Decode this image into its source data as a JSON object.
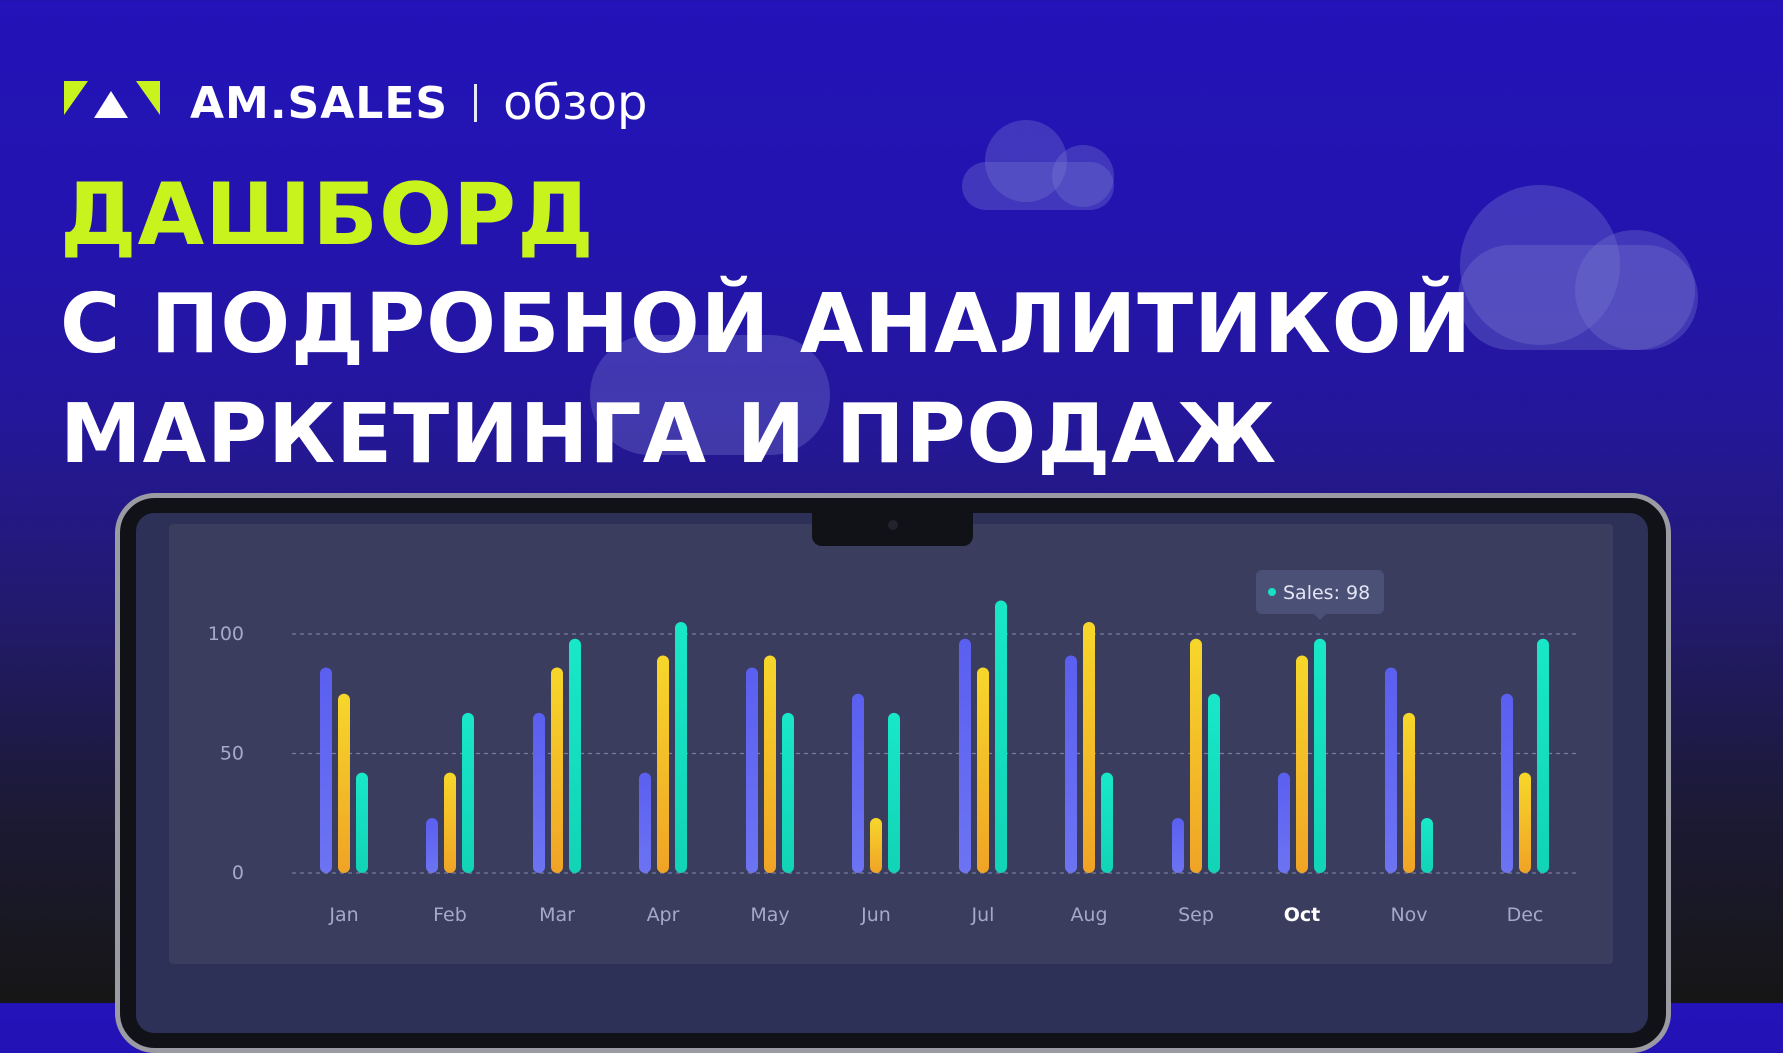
{
  "brand": {
    "name": "AM.SALES",
    "subtitle": "обзор"
  },
  "headline": {
    "line1": "ДАШБОРД",
    "line2": "С ПОДРОБНОЙ АНАЛИТИКОЙ",
    "line3": "МАРКЕТИНГА И ПРОДАЖ"
  },
  "colors": {
    "accent": "#c8f31d",
    "series_colors": [
      "#5b62ee",
      "#f2c21f",
      "#16e2c3"
    ],
    "background": "#2313b8"
  },
  "chart_data": {
    "type": "bar",
    "categories": [
      "Jan",
      "Feb",
      "Mar",
      "Apr",
      "May",
      "Jun",
      "Jul",
      "Aug",
      "Sep",
      "Oct",
      "Nov",
      "Dec"
    ],
    "series": [
      {
        "values": [
          86,
          23,
          67,
          42,
          86,
          75,
          98,
          91,
          23,
          42,
          86,
          75
        ]
      },
      {
        "values": [
          75,
          42,
          86,
          91,
          91,
          23,
          86,
          105,
          98,
          91,
          67,
          42
        ]
      },
      {
        "values": [
          42,
          67,
          98,
          105,
          67,
          67,
          114,
          42,
          75,
          98,
          23,
          98
        ]
      }
    ],
    "ylim": [
      0,
      100
    ],
    "yticks": [
      0,
      50,
      100
    ],
    "grid": true,
    "highlighted_category": "Oct",
    "tooltip": {
      "label": "Sales: 98"
    }
  }
}
